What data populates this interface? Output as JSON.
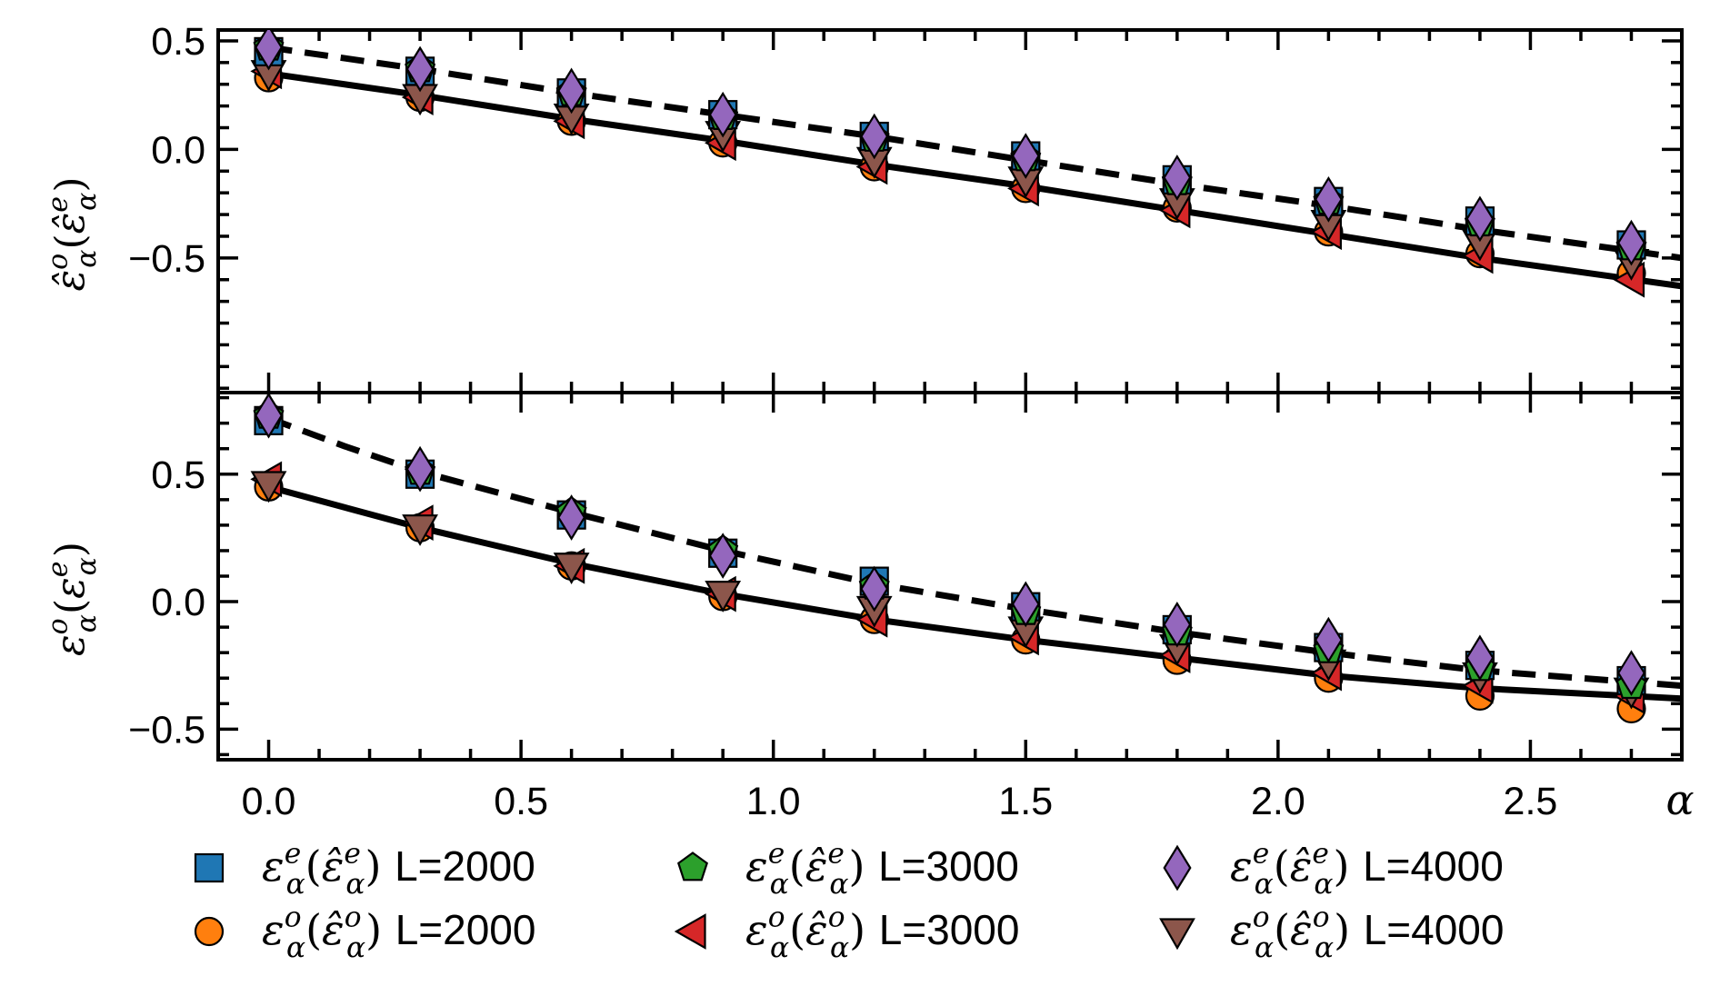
{
  "chart_data": {
    "type": "scatter",
    "x_axis": {
      "label": "α",
      "xlim": [
        -0.1,
        2.8
      ],
      "ticks": [
        0.0,
        0.5,
        1.0,
        1.5,
        2.0,
        2.5
      ],
      "tick_labels": [
        "0.0",
        "0.5",
        "1.0",
        "1.5",
        "2.0",
        "2.5"
      ]
    },
    "x": [
      0.0,
      0.3,
      0.6,
      0.9,
      1.2,
      1.5,
      1.8,
      2.1,
      2.4,
      2.7
    ],
    "panels": [
      {
        "id": "top",
        "ylabel": "ε̂^o_α(ε̂^e_α)",
        "ylabel_main": "ε̂",
        "ylabel_sup": "o",
        "ylabel_sub": "α",
        "ylabel_open": "(",
        "ylabel_inner": "ε̂",
        "ylabel_inner_sup": "e",
        "ylabel_inner_sub": "α",
        "ylabel_close": ")",
        "ylim": [
          -1.12,
          0.55
        ],
        "yticks": [
          0.5,
          0.0,
          -0.5
        ],
        "ytick_labels": [
          "0.5",
          "0.0",
          "−0.5"
        ],
        "series": [
          {
            "legend_index": 0,
            "values": [
              0.45,
              0.36,
              0.26,
              0.16,
              0.06,
              -0.03,
              -0.14,
              -0.24,
              -0.33,
              -0.44
            ]
          },
          {
            "legend_index": 1,
            "values": [
              0.47,
              0.37,
              0.26,
              0.15,
              0.05,
              -0.04,
              -0.15,
              -0.24,
              -0.34,
              -0.45
            ]
          },
          {
            "legend_index": 2,
            "values": [
              0.47,
              0.37,
              0.27,
              0.16,
              0.06,
              -0.03,
              -0.13,
              -0.23,
              -0.32,
              -0.43
            ]
          },
          {
            "legend_index": 3,
            "values": [
              0.33,
              0.24,
              0.13,
              0.03,
              -0.08,
              -0.18,
              -0.27,
              -0.38,
              -0.48,
              -0.57
            ]
          },
          {
            "legend_index": 4,
            "values": [
              0.36,
              0.24,
              0.13,
              0.03,
              -0.08,
              -0.18,
              -0.28,
              -0.38,
              -0.49,
              -0.6
            ]
          },
          {
            "legend_index": 5,
            "values": [
              0.35,
              0.24,
              0.15,
              0.07,
              -0.05,
              -0.14,
              -0.24,
              -0.34,
              -0.43,
              -0.52
            ]
          }
        ],
        "curves": [
          {
            "style": "dashed",
            "x": [
              0.0,
              0.3,
              0.6,
              0.9,
              1.2,
              1.5,
              1.8,
              2.1,
              2.4,
              2.8
            ],
            "y": [
              0.47,
              0.37,
              0.26,
              0.16,
              0.06,
              -0.05,
              -0.16,
              -0.26,
              -0.37,
              -0.5
            ]
          },
          {
            "style": "solid",
            "x": [
              0.0,
              0.3,
              0.6,
              0.9,
              1.2,
              1.5,
              1.8,
              2.1,
              2.4,
              2.8
            ],
            "y": [
              0.35,
              0.25,
              0.14,
              0.04,
              -0.07,
              -0.17,
              -0.28,
              -0.39,
              -0.5,
              -0.63
            ]
          }
        ]
      },
      {
        "id": "bottom",
        "ylabel": "ε^o_α(ε^e_α)",
        "ylabel_main": "ε",
        "ylabel_sup": "o",
        "ylabel_sub": "α",
        "ylabel_open": "(",
        "ylabel_inner": "ε",
        "ylabel_inner_sup": "e",
        "ylabel_inner_sub": "α",
        "ylabel_close": ")",
        "ylim": [
          -0.62,
          0.82
        ],
        "yticks": [
          0.5,
          0.0,
          -0.5
        ],
        "ytick_labels": [
          "0.5",
          "0.0",
          "−0.5"
        ],
        "series": [
          {
            "legend_index": 0,
            "values": [
              0.71,
              0.5,
              0.34,
              0.19,
              0.08,
              -0.02,
              -0.11,
              -0.18,
              -0.25,
              -0.31
            ]
          },
          {
            "legend_index": 1,
            "values": [
              0.73,
              0.51,
              0.35,
              0.2,
              0.06,
              -0.04,
              -0.12,
              -0.19,
              -0.26,
              -0.33
            ]
          },
          {
            "legend_index": 2,
            "values": [
              0.73,
              0.52,
              0.33,
              0.18,
              0.05,
              -0.01,
              -0.09,
              -0.15,
              -0.22,
              -0.28
            ]
          },
          {
            "legend_index": 3,
            "values": [
              0.45,
              0.29,
              0.14,
              0.02,
              -0.07,
              -0.15,
              -0.23,
              -0.3,
              -0.37,
              -0.42
            ]
          },
          {
            "legend_index": 4,
            "values": [
              0.48,
              0.31,
              0.14,
              0.03,
              -0.07,
              -0.14,
              -0.21,
              -0.28,
              -0.33,
              -0.37
            ]
          },
          {
            "legend_index": 5,
            "values": [
              0.46,
              0.29,
              0.14,
              0.03,
              -0.03,
              -0.11,
              -0.18,
              -0.24,
              -0.29,
              -0.35
            ]
          }
        ],
        "curves": [
          {
            "style": "dashed",
            "x": [
              0.0,
              0.15,
              0.3,
              0.6,
              0.9,
              1.2,
              1.5,
              1.8,
              2.1,
              2.4,
              2.8
            ],
            "y": [
              0.72,
              0.61,
              0.51,
              0.35,
              0.2,
              0.07,
              -0.03,
              -0.12,
              -0.2,
              -0.27,
              -0.33
            ]
          },
          {
            "style": "solid",
            "x": [
              0.0,
              0.15,
              0.3,
              0.6,
              0.9,
              1.2,
              1.5,
              1.8,
              2.1,
              2.4,
              2.8
            ],
            "y": [
              0.45,
              0.37,
              0.29,
              0.15,
              0.03,
              -0.07,
              -0.15,
              -0.22,
              -0.29,
              -0.34,
              -0.38
            ]
          }
        ]
      }
    ],
    "legend": {
      "placement": "bottom",
      "entries": [
        {
          "marker": "square",
          "color": "#1f77b4",
          "name": "L=2000",
          "main": "ε",
          "sup": "e",
          "sub": "α",
          "inner": "ε̂",
          "inner_sup": "e",
          "inner_sub": "α"
        },
        {
          "marker": "pentagon",
          "color": "#2ca02c",
          "name": "L=3000",
          "main": "ε",
          "sup": "e",
          "sub": "α",
          "inner": "ε̂",
          "inner_sup": "e",
          "inner_sub": "α"
        },
        {
          "marker": "diamond",
          "color": "#9467bd",
          "name": "L=4000",
          "main": "ε",
          "sup": "e",
          "sub": "α",
          "inner": "ε̂",
          "inner_sup": "e",
          "inner_sub": "α"
        },
        {
          "marker": "circle",
          "color": "#ff7f0e",
          "name": "L=2000",
          "main": "ε",
          "sup": "o",
          "sub": "α",
          "inner": "ε̂",
          "inner_sup": "o",
          "inner_sub": "α"
        },
        {
          "marker": "triangle-left",
          "color": "#d62728",
          "name": "L=3000",
          "main": "ε",
          "sup": "o",
          "sub": "α",
          "inner": "ε̂",
          "inner_sup": "o",
          "inner_sub": "α"
        },
        {
          "marker": "triangle-down",
          "color": "#8c564b",
          "name": "L=4000",
          "main": "ε",
          "sup": "o",
          "sub": "α",
          "inner": "ε̂",
          "inner_sup": "o",
          "inner_sub": "α"
        }
      ]
    },
    "grid": false
  }
}
